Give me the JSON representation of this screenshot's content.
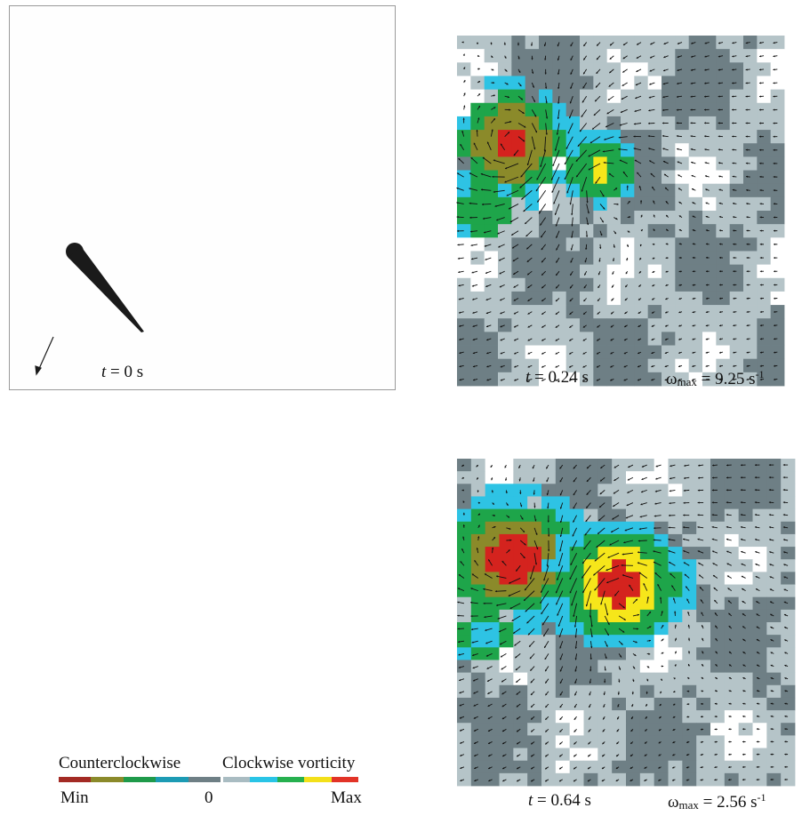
{
  "panels": [
    {
      "id": "t0",
      "time_label": "t = 0 s",
      "t_prefix": "t",
      "t_value": "= 0 s"
    },
    {
      "id": "t024",
      "t_prefix": "t",
      "t_value": "= 0.24 s",
      "omega_symbol": "ω",
      "omega_sub": "max",
      "omega_value": "= 9.25 s",
      "omega_exp": "-1"
    },
    {
      "id": "t064",
      "t_prefix": "t",
      "t_value": "= 0.64 s",
      "omega_symbol": "ω",
      "omega_sub": "max",
      "omega_value": "= 2.56 s",
      "omega_exp": "-1"
    }
  ],
  "legend": {
    "left_title": "Counterclockwise",
    "right_title": "Clockwise vorticity",
    "min_label": "Min",
    "zero_label": "0",
    "max_label": "Max",
    "ccw_colors": [
      "#a32a24",
      "#8b8a2a",
      "#1f9a4a",
      "#1c9bb4",
      "#6e7f85"
    ],
    "cw_colors": [
      "#a9bcc2",
      "#29c4e6",
      "#26b04f",
      "#f3e01a",
      "#e23327"
    ]
  },
  "colors": {
    "dark_gray": "#6e7f85",
    "light_gray": "#b5c4c8",
    "white": "#ffffff",
    "cyan": "#2ec3e4",
    "green": "#1ea54a",
    "olive": "#8b8a2a",
    "red": "#d4231e",
    "yellow": "#f6e61a",
    "arrow": "#111111"
  }
}
